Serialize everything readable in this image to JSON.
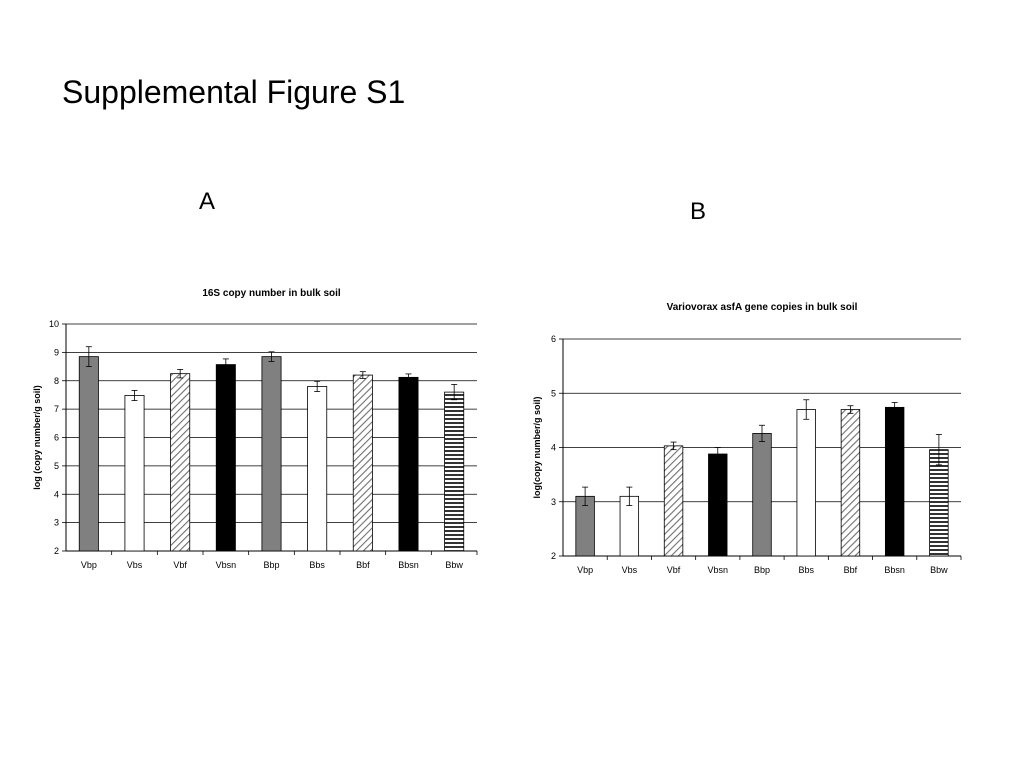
{
  "slide": {
    "title": "Supplemental Figure S1"
  },
  "panels": [
    {
      "letter": "A"
    },
    {
      "letter": "B"
    }
  ],
  "colors": {
    "gray": "#808080",
    "black": "#000000",
    "white": "#ffffff"
  },
  "chart_data": [
    {
      "type": "bar",
      "title": "16S copy number in bulk soil",
      "xlabel": "",
      "ylabel": "log (copy number/g soil)",
      "ylim": [
        2,
        10
      ],
      "yticks": [
        2,
        3,
        4,
        5,
        6,
        7,
        8,
        9,
        10
      ],
      "grid": true,
      "categories": [
        "Vbp",
        "Vbs",
        "Vbf",
        "Vbsn",
        "Bbp",
        "Bbs",
        "Bbf",
        "Bbsn",
        "Bbw"
      ],
      "values": [
        8.85,
        7.48,
        8.25,
        8.57,
        8.85,
        7.8,
        8.2,
        8.12,
        7.6
      ],
      "errors": [
        0.35,
        0.18,
        0.15,
        0.2,
        0.17,
        0.18,
        0.12,
        0.12,
        0.27
      ],
      "fills": [
        "gray",
        "white",
        "diagonal",
        "black",
        "gray",
        "white",
        "diagonal",
        "black",
        "horizontal"
      ]
    },
    {
      "type": "bar",
      "title": "Variovorax asfA gene copies in bulk soil",
      "xlabel": "",
      "ylabel": "log(copy number/g soil)",
      "ylim": [
        2,
        6
      ],
      "yticks": [
        2,
        3,
        4,
        5,
        6
      ],
      "grid": true,
      "categories": [
        "Vbp",
        "Vbs",
        "Vbf",
        "Vbsn",
        "Bbp",
        "Bbs",
        "Bbf",
        "Bbsn",
        "Bbw"
      ],
      "values": [
        3.1,
        3.1,
        4.03,
        3.88,
        4.26,
        4.7,
        4.7,
        4.74,
        3.96
      ],
      "errors": [
        0.17,
        0.17,
        0.07,
        0.12,
        0.15,
        0.18,
        0.07,
        0.09,
        0.28
      ],
      "fills": [
        "gray",
        "white",
        "diagonal",
        "black",
        "gray",
        "white",
        "diagonal",
        "black",
        "horizontal"
      ]
    }
  ]
}
